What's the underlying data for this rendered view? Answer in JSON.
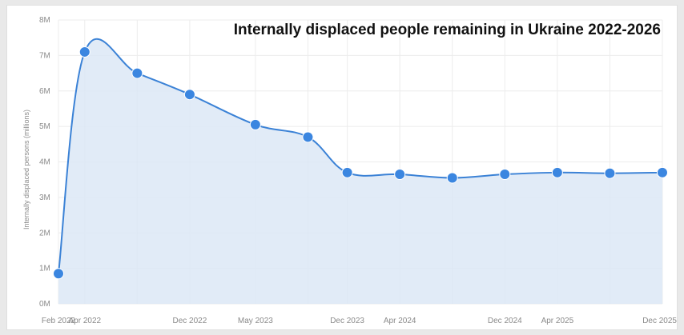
{
  "chart_data": {
    "type": "area",
    "title": "Internally displaced people remaining in Ukraine 2022-2026",
    "ylabel": "Internally displaced persons (millions)",
    "xlabel": "",
    "ylim": [
      0,
      8
    ],
    "y_tick_labels": [
      "0M",
      "1M",
      "2M",
      "3M",
      "4M",
      "5M",
      "6M",
      "7M",
      "8M"
    ],
    "x_tick_labels": [
      "Feb 2022",
      "Apr 2022",
      "Dec 2022",
      "May 2023",
      "Dec 2023",
      "Apr 2024",
      "Dec 2024",
      "Apr 2025",
      "Dec 2025"
    ],
    "grid": true,
    "legend": "none",
    "series": [
      {
        "values": [
          {
            "x": "2022-02",
            "y": 0.85
          },
          {
            "x": "2022-04",
            "y": 7.1
          },
          {
            "x": "2022-08",
            "y": 6.5
          },
          {
            "x": "2022-12",
            "y": 5.9
          },
          {
            "x": "2023-05",
            "y": 5.05
          },
          {
            "x": "2023-09",
            "y": 4.7
          },
          {
            "x": "2023-12",
            "y": 3.7
          },
          {
            "x": "2024-04",
            "y": 3.65
          },
          {
            "x": "2024-08",
            "y": 3.55
          },
          {
            "x": "2024-12",
            "y": 3.65
          },
          {
            "x": "2025-04",
            "y": 3.7
          },
          {
            "x": "2025-08",
            "y": 3.68
          },
          {
            "x": "2025-12",
            "y": 3.7
          }
        ]
      }
    ],
    "colors": {
      "line": "#3b82d6",
      "area_fill": "#dce8f6",
      "marker": "#3b86e0",
      "grid": "#ececec",
      "tick_text": "#8a8a8a",
      "title_text": "#111111"
    }
  }
}
